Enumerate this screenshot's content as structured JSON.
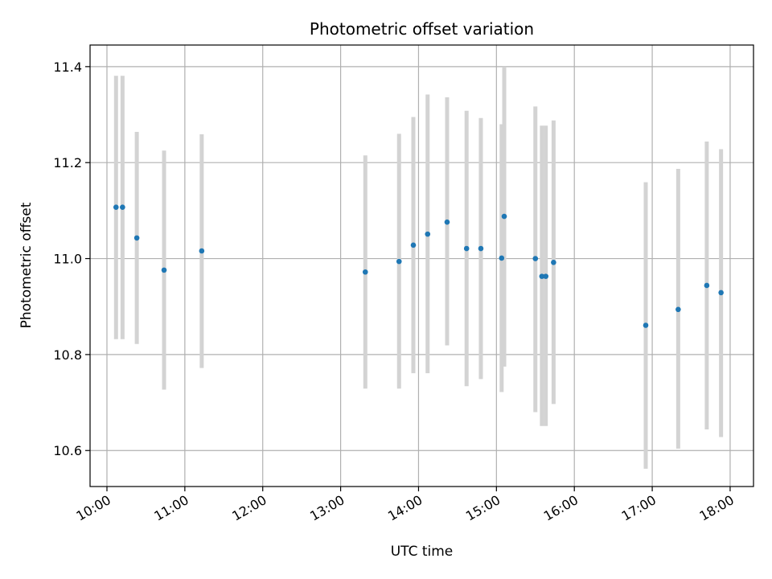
{
  "chart_data": {
    "type": "scatter",
    "title": "Photometric offset variation",
    "xlabel": "UTC time",
    "ylabel": "Photometric offset",
    "xlim": [
      "09:47",
      "18:18"
    ],
    "ylim": [
      10.525,
      11.445
    ],
    "xticks": [
      "10:00",
      "11:00",
      "12:00",
      "13:00",
      "14:00",
      "15:00",
      "16:00",
      "17:00",
      "18:00"
    ],
    "yticks": [
      10.6,
      10.8,
      11.0,
      11.2,
      11.4
    ],
    "ytick_labels": [
      "10.6",
      "10.8",
      "11.0",
      "11.2",
      "11.4"
    ],
    "grid": true,
    "colors": {
      "points": "#1f77b4",
      "errorbars": "#d3d3d3",
      "grid": "#b0b0b0"
    },
    "points": [
      {
        "x": "10:07",
        "y": 11.107,
        "err_low": 10.832,
        "err_high": 11.381
      },
      {
        "x": "10:12",
        "y": 11.107,
        "err_low": 10.832,
        "err_high": 11.381
      },
      {
        "x": "10:23",
        "y": 11.043,
        "err_low": 10.822,
        "err_high": 11.264
      },
      {
        "x": "10:44",
        "y": 10.976,
        "err_low": 10.727,
        "err_high": 11.225
      },
      {
        "x": "11:13",
        "y": 11.016,
        "err_low": 10.772,
        "err_high": 11.259
      },
      {
        "x": "13:19",
        "y": 10.972,
        "err_low": 10.729,
        "err_high": 11.215
      },
      {
        "x": "13:45",
        "y": 10.994,
        "err_low": 10.729,
        "err_high": 11.26
      },
      {
        "x": "13:56",
        "y": 11.028,
        "err_low": 10.761,
        "err_high": 11.295
      },
      {
        "x": "14:07",
        "y": 11.051,
        "err_low": 10.761,
        "err_high": 11.342
      },
      {
        "x": "14:22",
        "y": 11.076,
        "err_low": 10.819,
        "err_high": 11.336
      },
      {
        "x": "14:37",
        "y": 11.021,
        "err_low": 10.734,
        "err_high": 11.308
      },
      {
        "x": "14:48",
        "y": 11.021,
        "err_low": 10.749,
        "err_high": 11.293
      },
      {
        "x": "15:04",
        "y": 11.001,
        "err_low": 10.722,
        "err_high": 11.28
      },
      {
        "x": "15:06",
        "y": 11.088,
        "err_low": 10.775,
        "err_high": 11.4
      },
      {
        "x": "15:30",
        "y": 11.0,
        "err_low": 10.68,
        "err_high": 11.317
      },
      {
        "x": "15:35",
        "y": 10.963,
        "err_low": 10.651,
        "err_high": 11.277
      },
      {
        "x": "15:38",
        "y": 10.963,
        "err_low": 10.651,
        "err_high": 11.277
      },
      {
        "x": "15:44",
        "y": 10.992,
        "err_low": 10.697,
        "err_high": 11.288
      },
      {
        "x": "16:55",
        "y": 10.861,
        "err_low": 10.562,
        "err_high": 11.159
      },
      {
        "x": "17:20",
        "y": 10.894,
        "err_low": 10.604,
        "err_high": 11.187
      },
      {
        "x": "17:42",
        "y": 10.944,
        "err_low": 10.644,
        "err_high": 11.244
      },
      {
        "x": "17:53",
        "y": 10.929,
        "err_low": 10.628,
        "err_high": 11.228
      }
    ]
  }
}
